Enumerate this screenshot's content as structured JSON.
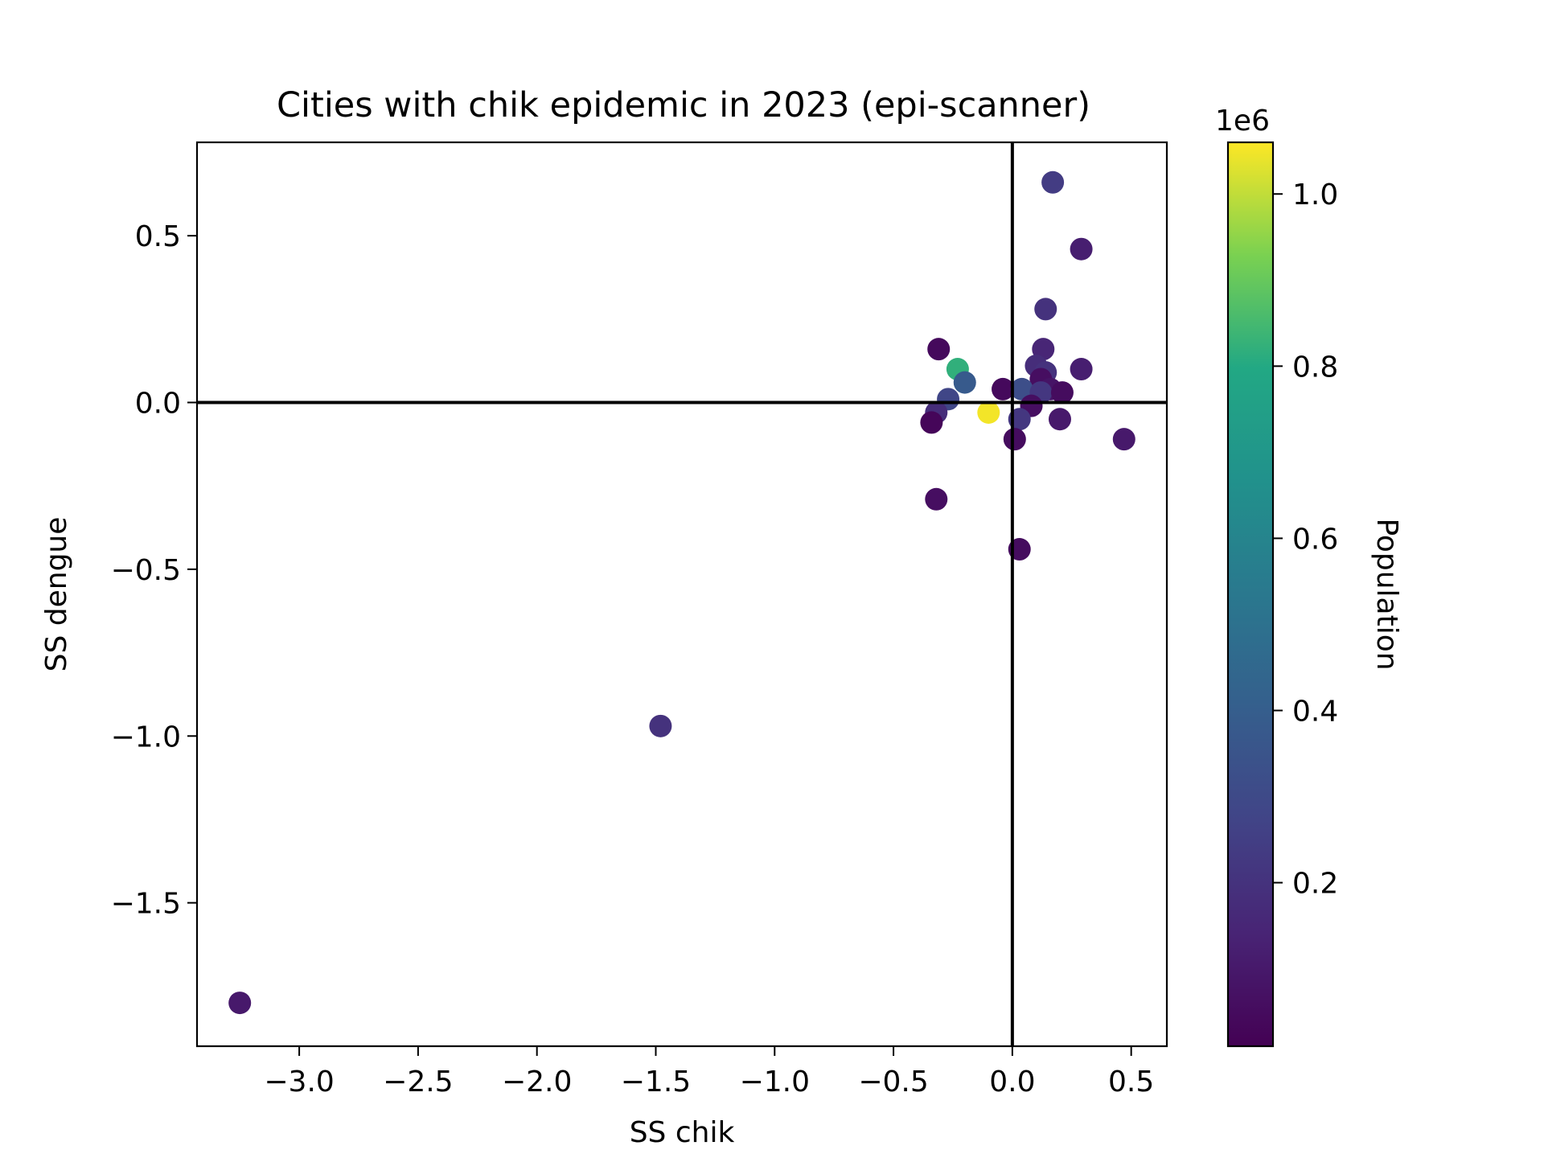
{
  "chart_data": {
    "type": "scatter",
    "title": "Cities with chik epidemic in 2023 (epi-scanner)",
    "xlabel": "SS chik",
    "ylabel": "SS dengue",
    "xlim": [
      -3.43,
      0.65
    ],
    "ylim": [
      -1.93,
      0.78
    ],
    "xticks": [
      -3.0,
      -2.5,
      -2.0,
      -1.5,
      -1.0,
      -0.5,
      0.0,
      0.5
    ],
    "xtick_labels": [
      "−3.0",
      "−2.5",
      "−2.0",
      "−1.5",
      "−1.0",
      "−0.5",
      "0.0",
      "0.5"
    ],
    "yticks": [
      0.5,
      0.0,
      -0.5,
      -1.0,
      -1.5
    ],
    "ytick_labels": [
      "0.5",
      "0.0",
      "−0.5",
      "−1.0",
      "−1.5"
    ],
    "reference_lines": {
      "x": 0,
      "y": 0
    },
    "grid": false,
    "colorbar": {
      "label": "Population",
      "multiplier": "1e6",
      "colormap": "viridis",
      "range": [
        0.01,
        1.06
      ],
      "ticks": [
        0.2,
        0.4,
        0.6,
        0.8,
        1.0
      ],
      "tick_labels": [
        "0.2",
        "0.4",
        "0.6",
        "0.8",
        "1.0"
      ]
    },
    "points": [
      {
        "x": 0.17,
        "y": 0.66,
        "c": 0.24
      },
      {
        "x": 0.29,
        "y": 0.46,
        "c": 0.12
      },
      {
        "x": 0.14,
        "y": 0.28,
        "c": 0.2
      },
      {
        "x": -0.31,
        "y": 0.16,
        "c": 0.04
      },
      {
        "x": 0.13,
        "y": 0.16,
        "c": 0.15
      },
      {
        "x": 0.1,
        "y": 0.11,
        "c": 0.18
      },
      {
        "x": 0.14,
        "y": 0.09,
        "c": 0.2
      },
      {
        "x": 0.29,
        "y": 0.1,
        "c": 0.12
      },
      {
        "x": -0.23,
        "y": 0.1,
        "c": 0.82
      },
      {
        "x": 0.12,
        "y": 0.07,
        "c": 0.06
      },
      {
        "x": -0.2,
        "y": 0.06,
        "c": 0.38
      },
      {
        "x": -0.04,
        "y": 0.04,
        "c": 0.04
      },
      {
        "x": 0.04,
        "y": 0.04,
        "c": 0.32
      },
      {
        "x": 0.16,
        "y": 0.04,
        "c": 0.08
      },
      {
        "x": 0.12,
        "y": 0.03,
        "c": 0.22
      },
      {
        "x": 0.21,
        "y": 0.03,
        "c": 0.05
      },
      {
        "x": -0.27,
        "y": 0.01,
        "c": 0.28
      },
      {
        "x": 0.08,
        "y": -0.01,
        "c": 0.06
      },
      {
        "x": -0.32,
        "y": -0.03,
        "c": 0.18
      },
      {
        "x": -0.1,
        "y": -0.03,
        "c": 1.05
      },
      {
        "x": 0.03,
        "y": -0.05,
        "c": 0.22
      },
      {
        "x": 0.2,
        "y": -0.05,
        "c": 0.1
      },
      {
        "x": -0.34,
        "y": -0.06,
        "c": 0.03
      },
      {
        "x": 0.47,
        "y": -0.11,
        "c": 0.1
      },
      {
        "x": 0.01,
        "y": -0.11,
        "c": 0.05
      },
      {
        "x": -0.32,
        "y": -0.29,
        "c": 0.06
      },
      {
        "x": 0.03,
        "y": -0.44,
        "c": 0.05
      },
      {
        "x": -1.48,
        "y": -0.97,
        "c": 0.2
      },
      {
        "x": -3.25,
        "y": -1.8,
        "c": 0.1
      }
    ]
  }
}
